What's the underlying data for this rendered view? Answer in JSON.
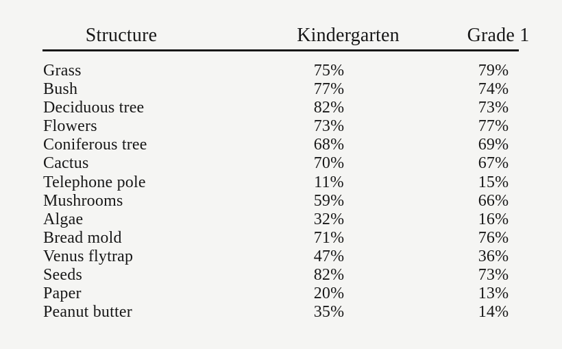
{
  "colors": {
    "background": "#f5f5f3",
    "text": "#171717",
    "rule": "#171717"
  },
  "table": {
    "columns": [
      {
        "label": "Structure"
      },
      {
        "label": "Kindergarten"
      },
      {
        "label": "Grade 1"
      }
    ],
    "rows": [
      {
        "structure": "Grass",
        "kindergarten": "75%",
        "grade1": "79%"
      },
      {
        "structure": "Bush",
        "kindergarten": "77%",
        "grade1": "74%"
      },
      {
        "structure": "Deciduous tree",
        "kindergarten": "82%",
        "grade1": "73%"
      },
      {
        "structure": "Flowers",
        "kindergarten": "73%",
        "grade1": "77%"
      },
      {
        "structure": "Coniferous tree",
        "kindergarten": "68%",
        "grade1": "69%"
      },
      {
        "structure": "Cactus",
        "kindergarten": "70%",
        "grade1": "67%"
      },
      {
        "structure": "Telephone pole",
        "kindergarten": "11%",
        "grade1": "15%"
      },
      {
        "structure": "Mushrooms",
        "kindergarten": "59%",
        "grade1": "66%"
      },
      {
        "structure": "Algae",
        "kindergarten": "32%",
        "grade1": "16%"
      },
      {
        "structure": "Bread mold",
        "kindergarten": "71%",
        "grade1": "76%"
      },
      {
        "structure": "Venus flytrap",
        "kindergarten": "47%",
        "grade1": "36%"
      },
      {
        "structure": "Seeds",
        "kindergarten": "82%",
        "grade1": "73%"
      },
      {
        "structure": "Paper",
        "kindergarten": "20%",
        "grade1": "13%"
      },
      {
        "structure": "Peanut butter",
        "kindergarten": "35%",
        "grade1": "14%"
      }
    ]
  },
  "chart_data": {
    "type": "table",
    "columns": [
      "Structure",
      "Kindergarten",
      "Grade 1"
    ],
    "rows": [
      [
        "Grass",
        "75%",
        "79%"
      ],
      [
        "Bush",
        "77%",
        "74%"
      ],
      [
        "Deciduous tree",
        "82%",
        "73%"
      ],
      [
        "Flowers",
        "73%",
        "77%"
      ],
      [
        "Coniferous tree",
        "68%",
        "69%"
      ],
      [
        "Cactus",
        "70%",
        "67%"
      ],
      [
        "Telephone pole",
        "11%",
        "15%"
      ],
      [
        "Mushrooms",
        "59%",
        "66%"
      ],
      [
        "Algae",
        "32%",
        "16%"
      ],
      [
        "Bread mold",
        "71%",
        "76%"
      ],
      [
        "Venus flytrap",
        "47%",
        "36%"
      ],
      [
        "Seeds",
        "82%",
        "73%"
      ],
      [
        "Paper",
        "20%",
        "13%"
      ],
      [
        "Peanut butter",
        "35%",
        "14%"
      ]
    ]
  }
}
